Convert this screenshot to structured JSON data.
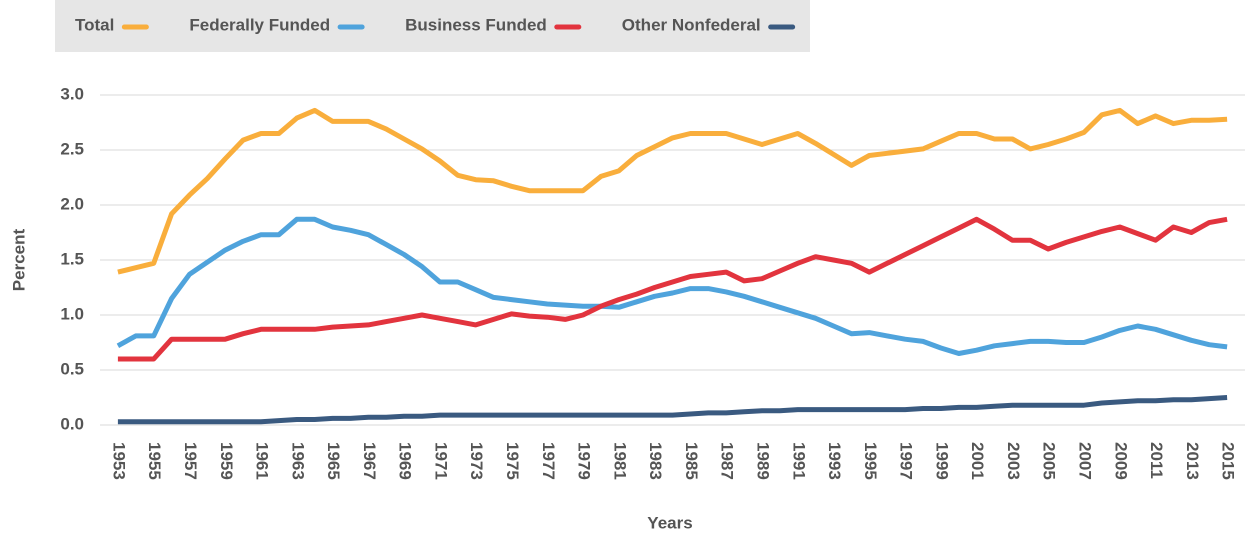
{
  "chart_data": {
    "type": "line",
    "xlabel": "Years",
    "ylabel": "Percent",
    "x": [
      1953,
      1954,
      1955,
      1956,
      1957,
      1958,
      1959,
      1960,
      1961,
      1962,
      1963,
      1964,
      1965,
      1966,
      1967,
      1968,
      1969,
      1970,
      1971,
      1972,
      1973,
      1974,
      1975,
      1976,
      1977,
      1978,
      1979,
      1980,
      1981,
      1982,
      1983,
      1984,
      1985,
      1986,
      1987,
      1988,
      1989,
      1990,
      1991,
      1992,
      1993,
      1994,
      1995,
      1996,
      1997,
      1998,
      1999,
      2000,
      2001,
      2002,
      2003,
      2004,
      2005,
      2006,
      2007,
      2008,
      2009,
      2010,
      2011,
      2012,
      2013,
      2014,
      2015
    ],
    "series": [
      {
        "name": "Total",
        "color": "#f9ae3c",
        "values": [
          1.39,
          1.43,
          1.47,
          1.92,
          2.09,
          2.24,
          2.42,
          2.59,
          2.65,
          2.65,
          2.79,
          2.86,
          2.76,
          2.76,
          2.76,
          2.69,
          2.6,
          2.51,
          2.4,
          2.27,
          2.23,
          2.22,
          2.17,
          2.13,
          2.13,
          2.13,
          2.13,
          2.26,
          2.31,
          2.45,
          2.53,
          2.61,
          2.65,
          2.65,
          2.65,
          2.6,
          2.55,
          2.6,
          2.65,
          2.56,
          2.46,
          2.36,
          2.45,
          2.47,
          2.49,
          2.51,
          2.58,
          2.65,
          2.65,
          2.6,
          2.6,
          2.51,
          2.55,
          2.6,
          2.66,
          2.82,
          2.86,
          2.74,
          2.81,
          2.74,
          2.77,
          2.77,
          2.78
        ]
      },
      {
        "name": "Federally Funded",
        "color": "#4fa3dc",
        "values": [
          0.72,
          0.81,
          0.81,
          1.15,
          1.37,
          1.48,
          1.59,
          1.67,
          1.73,
          1.73,
          1.87,
          1.87,
          1.8,
          1.77,
          1.73,
          1.64,
          1.55,
          1.44,
          1.3,
          1.3,
          1.23,
          1.16,
          1.14,
          1.12,
          1.1,
          1.09,
          1.08,
          1.08,
          1.07,
          1.12,
          1.17,
          1.2,
          1.24,
          1.24,
          1.21,
          1.17,
          1.12,
          1.07,
          1.02,
          0.97,
          0.9,
          0.83,
          0.84,
          0.81,
          0.78,
          0.76,
          0.7,
          0.65,
          0.68,
          0.72,
          0.74,
          0.76,
          0.76,
          0.75,
          0.75,
          0.8,
          0.86,
          0.9,
          0.87,
          0.82,
          0.77,
          0.73,
          0.71
        ]
      },
      {
        "name": "Business Funded",
        "color": "#e2343e",
        "values": [
          0.6,
          0.6,
          0.6,
          0.78,
          0.78,
          0.78,
          0.78,
          0.83,
          0.87,
          0.87,
          0.87,
          0.87,
          0.89,
          0.9,
          0.91,
          0.94,
          0.97,
          1.0,
          0.97,
          0.94,
          0.91,
          0.96,
          1.01,
          0.99,
          0.98,
          0.96,
          1.0,
          1.08,
          1.14,
          1.19,
          1.25,
          1.3,
          1.35,
          1.37,
          1.39,
          1.31,
          1.33,
          1.4,
          1.47,
          1.53,
          1.5,
          1.47,
          1.39,
          1.47,
          1.55,
          1.63,
          1.71,
          1.79,
          1.87,
          1.78,
          1.68,
          1.68,
          1.6,
          1.66,
          1.71,
          1.76,
          1.8,
          1.74,
          1.68,
          1.8,
          1.75,
          1.84,
          1.87
        ]
      },
      {
        "name": "Other Nonfederal",
        "color": "#3a5a80",
        "values": [
          0.03,
          0.03,
          0.03,
          0.03,
          0.03,
          0.03,
          0.03,
          0.03,
          0.03,
          0.04,
          0.05,
          0.05,
          0.06,
          0.06,
          0.07,
          0.07,
          0.08,
          0.08,
          0.09,
          0.09,
          0.09,
          0.09,
          0.09,
          0.09,
          0.09,
          0.09,
          0.09,
          0.09,
          0.09,
          0.09,
          0.09,
          0.09,
          0.1,
          0.11,
          0.11,
          0.12,
          0.13,
          0.13,
          0.14,
          0.14,
          0.14,
          0.14,
          0.14,
          0.14,
          0.14,
          0.15,
          0.15,
          0.16,
          0.16,
          0.17,
          0.18,
          0.18,
          0.18,
          0.18,
          0.18,
          0.2,
          0.21,
          0.22,
          0.22,
          0.23,
          0.23,
          0.24,
          0.25
        ]
      }
    ],
    "xlim": [
      1952,
      2016
    ],
    "xticks": [
      1953,
      1955,
      1957,
      1959,
      1961,
      1963,
      1965,
      1967,
      1969,
      1971,
      1973,
      1975,
      1977,
      1979,
      1981,
      1983,
      1985,
      1987,
      1989,
      1991,
      1993,
      1995,
      1997,
      1999,
      2001,
      2003,
      2005,
      2007,
      2009,
      2011,
      2013,
      2015
    ],
    "ylim": [
      0,
      3
    ],
    "yticks": [
      {
        "value": 0,
        "label": "0.0"
      },
      0.5,
      {
        "value": 1,
        "label": "1.0"
      },
      1.5,
      {
        "value": 2,
        "label": "2.0"
      },
      2.5,
      {
        "value": 3,
        "label": "3.0"
      }
    ],
    "grid": true,
    "legend": "top-left"
  }
}
